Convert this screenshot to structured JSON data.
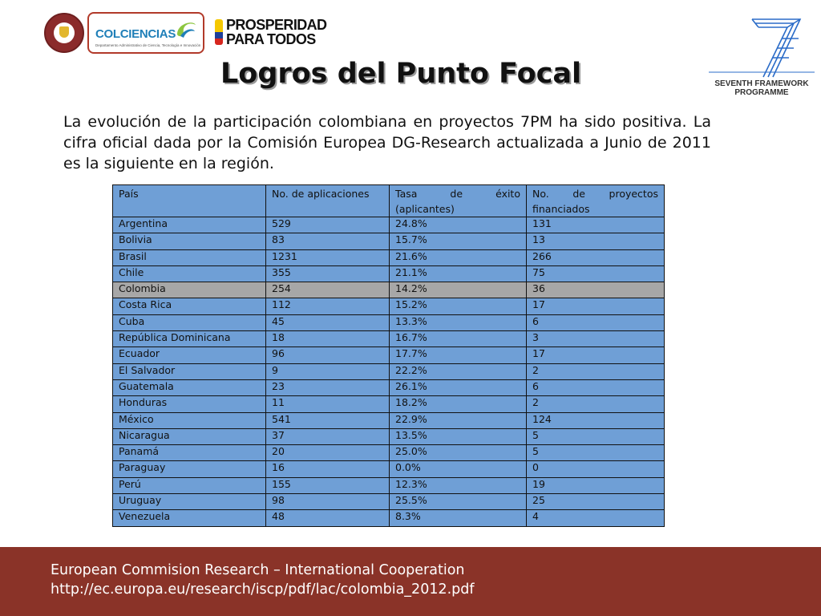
{
  "logos": {
    "seal": {
      "icon": "colombia-seal-icon"
    },
    "colciencias": {
      "name": "COLCIENCIAS",
      "subtitle": "Departamento Administrativo de Ciencia, Tecnología e Innovación",
      "icon": "colciencias-swirl-icon"
    },
    "prosperidad": {
      "line1": "PROSPERIDAD",
      "line2": "PARA TODOS",
      "colors": [
        "#f5c800",
        "#1d3f99",
        "#d7261e"
      ]
    },
    "fp7": {
      "line1": "SEVENTH FRAMEWORK",
      "line2": "PROGRAMME",
      "color": "#2b6cc8"
    }
  },
  "title": "Logros del Punto Focal",
  "intro": "La evolución de la participación colombiana en proyectos 7PM  ha sido positiva.  La cifra  oficial dada por la Comisión Europea DG-Research actualizada a Junio de 2011 es la siguiente en la región.",
  "table": {
    "headers": [
      "País",
      "No. de aplicaciones",
      "Tasa de éxito (aplicantes)",
      "No. de proyectos financiados"
    ],
    "highlight_color": "#a7a7a7",
    "cell_color": "#6f9fd6",
    "rows": [
      [
        "Argentina",
        "529",
        "24.8%",
        "131"
      ],
      [
        "Bolivia",
        "83",
        "15.7%",
        "13"
      ],
      [
        "Brasil",
        "1231",
        "21.6%",
        "266"
      ],
      [
        "Chile",
        "355",
        "21.1%",
        "75"
      ],
      [
        "Colombia",
        "254",
        "14.2%",
        "36"
      ],
      [
        "Costa Rica",
        "112",
        "15.2%",
        "17"
      ],
      [
        "Cuba",
        "45",
        "13.3%",
        "6"
      ],
      [
        "República Dominicana",
        "18",
        "16.7%",
        "3"
      ],
      [
        "Ecuador",
        "96",
        "17.7%",
        "17"
      ],
      [
        "El Salvador",
        "9",
        "22.2%",
        "2"
      ],
      [
        "Guatemala",
        "23",
        "26.1%",
        "6"
      ],
      [
        "Honduras",
        "11",
        "18.2%",
        "2"
      ],
      [
        "México",
        "541",
        "22.9%",
        "124"
      ],
      [
        "Nicaragua",
        "37",
        "13.5%",
        "5"
      ],
      [
        "Panamá",
        "20",
        "25.0%",
        "5"
      ],
      [
        "Paraguay",
        "16",
        "0.0%",
        "0"
      ],
      [
        "Perú",
        "155",
        "12.3%",
        "19"
      ],
      [
        "Uruguay",
        "98",
        "25.5%",
        "25"
      ],
      [
        "Venezuela",
        "48",
        "8.3%",
        "4"
      ]
    ]
  },
  "footer": {
    "line1": "European Commision Research – International Cooperation",
    "line2": "http://ec.europa.eu/research/iscp/pdf/lac/colombia_2012.pdf",
    "color": "#8a3328"
  }
}
